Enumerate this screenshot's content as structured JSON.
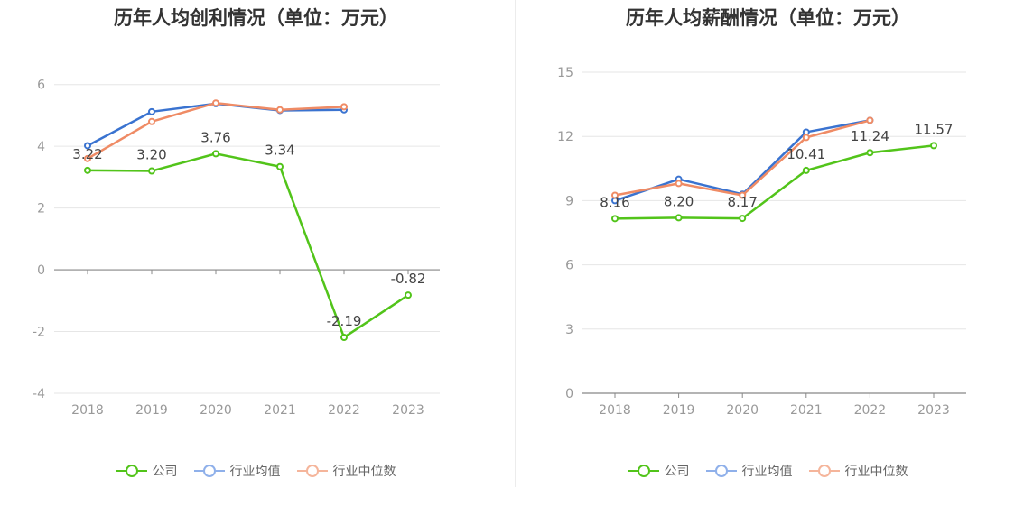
{
  "colors": {
    "company": "#52c41a",
    "industry_avg": "#3a73d0",
    "industry_median": "#ef8b65",
    "legend_avg": "#8fb0ea",
    "legend_median": "#f5b59b"
  },
  "legend": {
    "company": "公司",
    "industry_avg": "行业均值",
    "industry_median": "行业中位数"
  },
  "chart_data": [
    {
      "type": "line",
      "title": "历年人均创利情况（单位：万元）",
      "categories": [
        "2018",
        "2019",
        "2020",
        "2021",
        "2022",
        "2023"
      ],
      "yticks": [
        -4,
        -2,
        0,
        2,
        4,
        6
      ],
      "ylim": [
        -4,
        6.4
      ],
      "grid": true,
      "legend_position": "bottom",
      "series": [
        {
          "key": "company",
          "name": "公司",
          "values": [
            3.22,
            3.2,
            3.76,
            3.34,
            -2.19,
            -0.82
          ],
          "labels": [
            "3.22",
            "3.20",
            "3.76",
            "3.34",
            "-2.19",
            "-0.82"
          ]
        },
        {
          "key": "industry_avg",
          "name": "行业均值",
          "values": [
            4.02,
            5.12,
            5.38,
            5.16,
            5.18,
            null
          ]
        },
        {
          "key": "industry_median",
          "name": "行业中位数",
          "values": [
            3.6,
            4.8,
            5.4,
            5.18,
            5.28,
            null
          ]
        }
      ]
    },
    {
      "type": "line",
      "title": "历年人均薪酬情况（单位：万元）",
      "categories": [
        "2018",
        "2019",
        "2020",
        "2021",
        "2022",
        "2023"
      ],
      "yticks": [
        0,
        3,
        6,
        9,
        12,
        15
      ],
      "ylim": [
        0,
        15
      ],
      "grid": true,
      "legend_position": "bottom",
      "series": [
        {
          "key": "company",
          "name": "公司",
          "values": [
            8.16,
            8.2,
            8.17,
            10.41,
            11.24,
            11.57
          ],
          "labels": [
            "8.16",
            "8.20",
            "8.17",
            "10.41",
            "11.24",
            "11.57"
          ]
        },
        {
          "key": "industry_avg",
          "name": "行业均值",
          "values": [
            9.0,
            10.0,
            9.3,
            12.2,
            12.75,
            null
          ]
        },
        {
          "key": "industry_median",
          "name": "行业中位数",
          "values": [
            9.25,
            9.8,
            9.25,
            11.95,
            12.75,
            null
          ]
        }
      ]
    }
  ]
}
